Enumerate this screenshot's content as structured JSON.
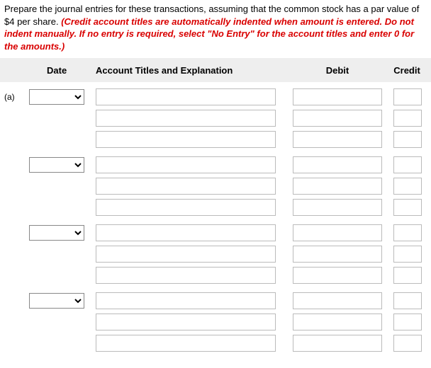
{
  "instructions": {
    "main": "Prepare the journal entries for these transactions, assuming that the common stock has a par value of $4 per share. ",
    "red": "(Credit account titles are automatically indented when amount is entered. Do not indent manually. If no entry is required, select \"No Entry\" for the account titles and enter 0 for the amounts.)"
  },
  "headers": {
    "date": "Date",
    "account": "Account Titles and Explanation",
    "debit": "Debit",
    "credit": "Credit"
  },
  "part_label": "(a)",
  "colors": {
    "header_bg": "#eeeeee",
    "instr_red": "#d90000",
    "input_border": "#bbbbbb",
    "select_border": "#888888"
  },
  "groups": [
    {
      "rows": [
        {
          "show_date": true,
          "show_label": true,
          "account": "",
          "debit": "",
          "credit": ""
        },
        {
          "show_date": false,
          "show_label": false,
          "account": "",
          "debit": "",
          "credit": ""
        },
        {
          "show_date": false,
          "show_label": false,
          "account": "",
          "debit": "",
          "credit": ""
        }
      ]
    },
    {
      "rows": [
        {
          "show_date": true,
          "show_label": false,
          "account": "",
          "debit": "",
          "credit": ""
        },
        {
          "show_date": false,
          "show_label": false,
          "account": "",
          "debit": "",
          "credit": ""
        },
        {
          "show_date": false,
          "show_label": false,
          "account": "",
          "debit": "",
          "credit": ""
        }
      ]
    },
    {
      "rows": [
        {
          "show_date": true,
          "show_label": false,
          "account": "",
          "debit": "",
          "credit": ""
        },
        {
          "show_date": false,
          "show_label": false,
          "account": "",
          "debit": "",
          "credit": ""
        },
        {
          "show_date": false,
          "show_label": false,
          "account": "",
          "debit": "",
          "credit": ""
        }
      ]
    },
    {
      "rows": [
        {
          "show_date": true,
          "show_label": false,
          "account": "",
          "debit": "",
          "credit": ""
        },
        {
          "show_date": false,
          "show_label": false,
          "account": "",
          "debit": "",
          "credit": ""
        },
        {
          "show_date": false,
          "show_label": false,
          "account": "",
          "debit": "",
          "credit": ""
        }
      ]
    }
  ]
}
